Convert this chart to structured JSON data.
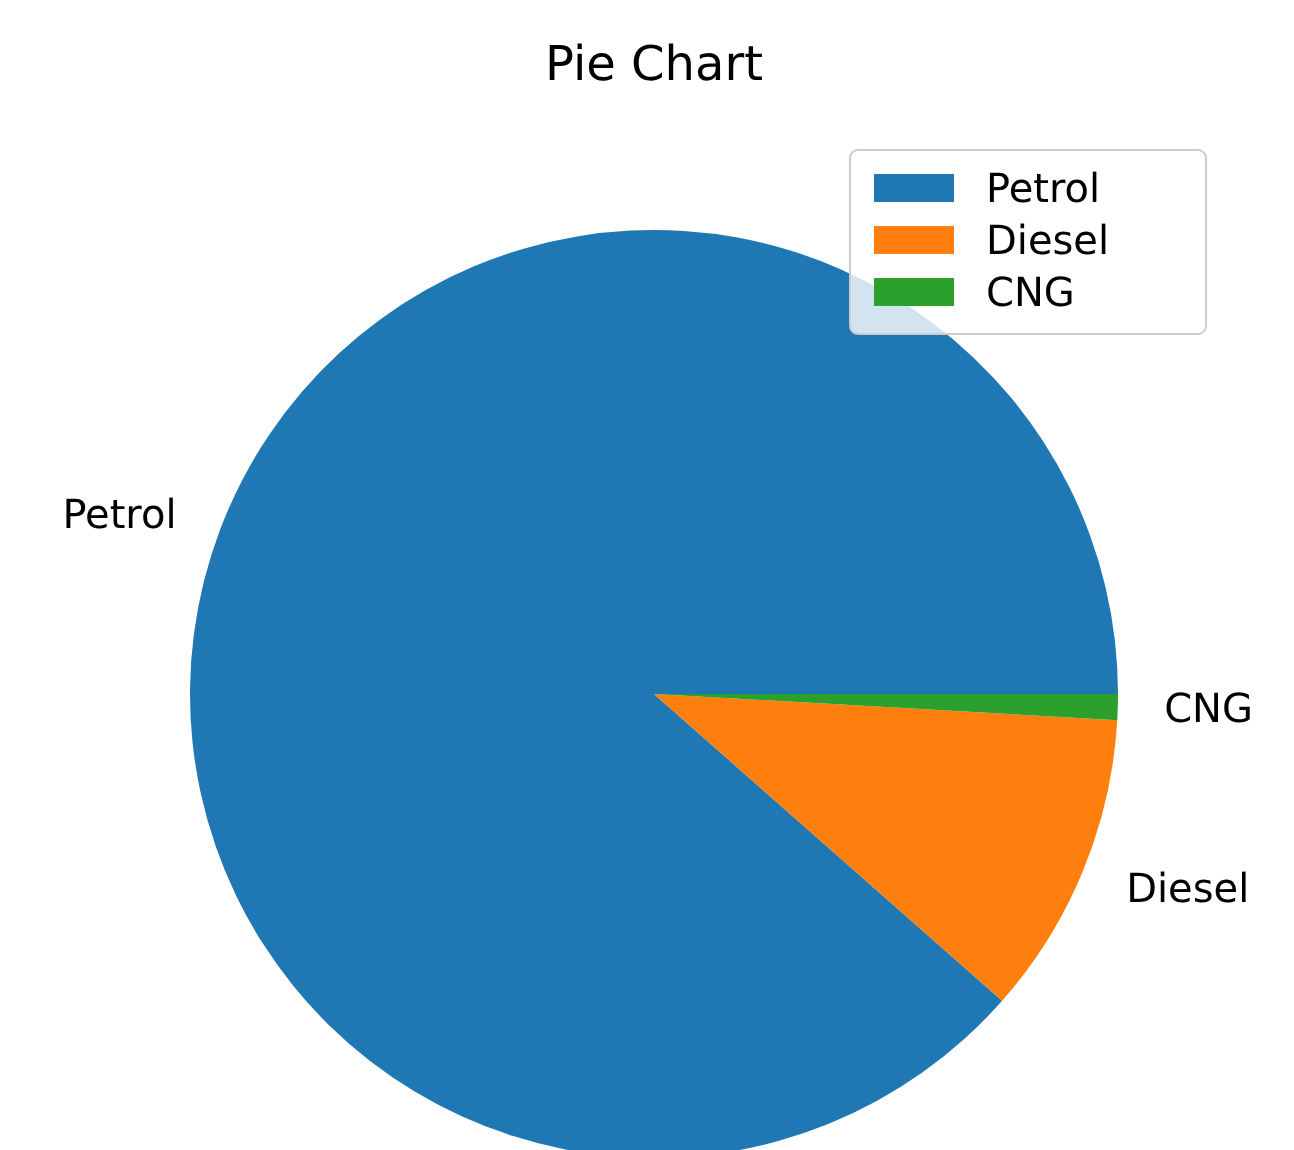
{
  "chart_data": {
    "type": "pie",
    "title": "Pie Chart",
    "categories": [
      "Petrol",
      "Diesel",
      "CNG"
    ],
    "values": [
      88.5,
      10.6,
      0.9
    ],
    "colors": [
      "#1f77b4",
      "#ff7f0e",
      "#2ca02c"
    ],
    "legend": "top right"
  }
}
